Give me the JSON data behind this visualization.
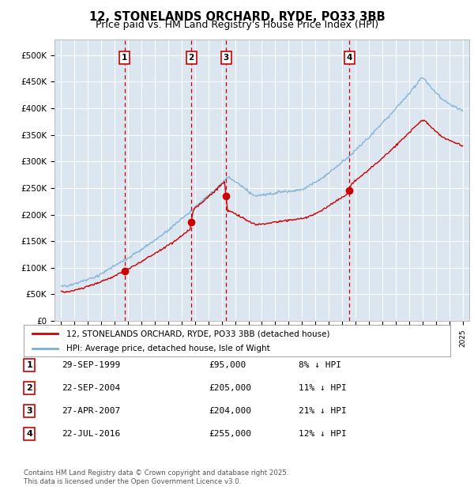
{
  "title": "12, STONELANDS ORCHARD, RYDE, PO33 3BB",
  "subtitle": "Price paid vs. HM Land Registry's House Price Index (HPI)",
  "ylim": [
    0,
    530000
  ],
  "yticks": [
    0,
    50000,
    100000,
    150000,
    200000,
    250000,
    300000,
    350000,
    400000,
    450000,
    500000
  ],
  "ytick_labels": [
    "£0",
    "£50K",
    "£100K",
    "£150K",
    "£200K",
    "£250K",
    "£300K",
    "£350K",
    "£400K",
    "£450K",
    "£500K"
  ],
  "background_color": "#dce6f1",
  "grid_color": "#ffffff",
  "hpi_line_color": "#7bafd4",
  "price_line_color": "#cc0000",
  "vline_color": "#cc0000",
  "transactions": [
    {
      "num": 1,
      "year": 1999.75,
      "price": 95000
    },
    {
      "num": 2,
      "year": 2004.72,
      "price": 205000
    },
    {
      "num": 3,
      "year": 2007.32,
      "price": 204000
    },
    {
      "num": 4,
      "year": 2016.55,
      "price": 255000
    }
  ],
  "legend_entries": [
    {
      "label": "12, STONELANDS ORCHARD, RYDE, PO33 3BB (detached house)",
      "color": "#cc0000"
    },
    {
      "label": "HPI: Average price, detached house, Isle of Wight",
      "color": "#7bafd4"
    }
  ],
  "table_rows": [
    [
      "1",
      "29-SEP-1999",
      "£95,000",
      "8% ↓ HPI"
    ],
    [
      "2",
      "22-SEP-2004",
      "£205,000",
      "11% ↓ HPI"
    ],
    [
      "3",
      "27-APR-2007",
      "£204,000",
      "21% ↓ HPI"
    ],
    [
      "4",
      "22-JUL-2016",
      "£255,000",
      "12% ↓ HPI"
    ]
  ],
  "footer": "Contains HM Land Registry data © Crown copyright and database right 2025.\nThis data is licensed under the Open Government Licence v3.0."
}
